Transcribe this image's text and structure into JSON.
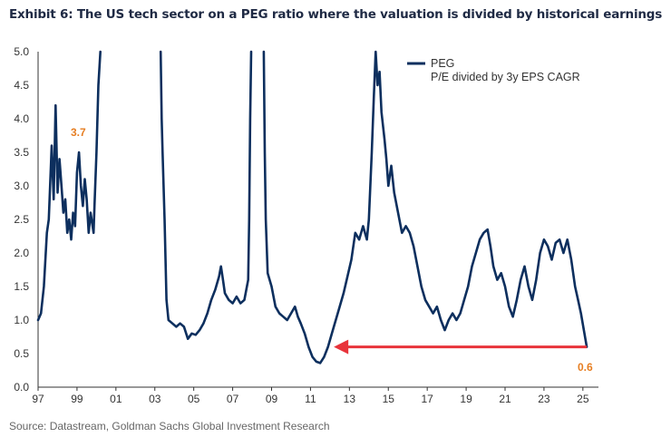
{
  "header": {
    "title": "Exhibit 6: The US tech sector on a PEG ratio where the valuation is divided by historical earnings"
  },
  "footer": {
    "source": "Source: Datastream, Goldman Sachs Global Investment Research"
  },
  "colors": {
    "line": "#0d2f5e",
    "arrow": "#e8333a",
    "annotation": "#e67e22",
    "axis": "#333333"
  },
  "legend": {
    "line1": "PEG",
    "line2": "P/E divided by 3y EPS CAGR",
    "placement": "top-right"
  },
  "annotations": {
    "peak_label": "3.7",
    "current_label": "0.6",
    "arrow": {
      "from_year": 2025.2,
      "to_year": 2012.2,
      "y": 0.6
    }
  },
  "chart_data": {
    "type": "line",
    "title": "",
    "xlabel": "",
    "ylabel": "",
    "xlim": [
      1997,
      2025.8
    ],
    "ylim": [
      0,
      5
    ],
    "x_ticks": [
      {
        "year": 1997,
        "label": "97"
      },
      {
        "year": 1999,
        "label": "99"
      },
      {
        "year": 2001,
        "label": "01"
      },
      {
        "year": 2003,
        "label": "03"
      },
      {
        "year": 2005,
        "label": "05"
      },
      {
        "year": 2007,
        "label": "07"
      },
      {
        "year": 2009,
        "label": "09"
      },
      {
        "year": 2011,
        "label": "11"
      },
      {
        "year": 2013,
        "label": "13"
      },
      {
        "year": 2015,
        "label": "15"
      },
      {
        "year": 2017,
        "label": "17"
      },
      {
        "year": 2019,
        "label": "19"
      },
      {
        "year": 2021,
        "label": "21"
      },
      {
        "year": 2023,
        "label": "23"
      },
      {
        "year": 2025,
        "label": "25"
      }
    ],
    "y_ticks": [
      {
        "value": 0,
        "label": "0.0"
      },
      {
        "value": 0.5,
        "label": "0.5"
      },
      {
        "value": 1,
        "label": "1.0"
      },
      {
        "value": 1.5,
        "label": "1.5"
      },
      {
        "value": 2,
        "label": "2.0"
      },
      {
        "value": 2.5,
        "label": "2.5"
      },
      {
        "value": 3,
        "label": "3.0"
      },
      {
        "value": 3.5,
        "label": "3.5"
      },
      {
        "value": 4,
        "label": "4.0"
      },
      {
        "value": 4.5,
        "label": "4.5"
      },
      {
        "value": 5,
        "label": "5.0"
      }
    ],
    "series": [
      {
        "name": "PEG",
        "segments": [
          [
            [
              1997.0,
              1.0
            ],
            [
              1997.15,
              1.1
            ],
            [
              1997.3,
              1.5
            ],
            [
              1997.45,
              2.3
            ],
            [
              1997.55,
              2.5
            ],
            [
              1997.7,
              3.6
            ],
            [
              1997.8,
              2.8
            ],
            [
              1997.9,
              4.2
            ],
            [
              1998.0,
              2.9
            ],
            [
              1998.1,
              3.4
            ],
            [
              1998.2,
              3.0
            ],
            [
              1998.3,
              2.6
            ],
            [
              1998.4,
              2.8
            ],
            [
              1998.5,
              2.3
            ],
            [
              1998.6,
              2.5
            ],
            [
              1998.7,
              2.2
            ],
            [
              1998.8,
              2.6
            ],
            [
              1998.9,
              2.4
            ],
            [
              1999.0,
              3.2
            ],
            [
              1999.1,
              3.5
            ],
            [
              1999.2,
              3.0
            ],
            [
              1999.3,
              2.7
            ],
            [
              1999.4,
              3.1
            ],
            [
              1999.5,
              2.8
            ],
            [
              1999.6,
              2.3
            ],
            [
              1999.7,
              2.6
            ],
            [
              1999.8,
              2.4
            ],
            [
              1999.85,
              2.3
            ],
            [
              1999.9,
              2.7
            ],
            [
              2000.0,
              3.5
            ],
            [
              2000.1,
              4.5
            ],
            [
              2000.2,
              5.0
            ]
          ],
          [
            [
              2003.3,
              5.0
            ],
            [
              2003.35,
              4.0
            ],
            [
              2003.4,
              3.5
            ],
            [
              2003.5,
              2.5
            ],
            [
              2003.6,
              1.3
            ],
            [
              2003.7,
              1.0
            ],
            [
              2003.9,
              0.95
            ],
            [
              2004.1,
              0.9
            ],
            [
              2004.3,
              0.95
            ],
            [
              2004.5,
              0.9
            ],
            [
              2004.7,
              0.72
            ],
            [
              2004.9,
              0.8
            ],
            [
              2005.1,
              0.78
            ],
            [
              2005.3,
              0.85
            ],
            [
              2005.5,
              0.95
            ],
            [
              2005.7,
              1.1
            ],
            [
              2005.9,
              1.3
            ],
            [
              2006.1,
              1.45
            ],
            [
              2006.3,
              1.65
            ],
            [
              2006.4,
              1.8
            ],
            [
              2006.5,
              1.6
            ],
            [
              2006.6,
              1.4
            ],
            [
              2006.8,
              1.3
            ],
            [
              2007.0,
              1.25
            ],
            [
              2007.2,
              1.35
            ],
            [
              2007.4,
              1.25
            ],
            [
              2007.6,
              1.3
            ],
            [
              2007.8,
              1.6
            ],
            [
              2007.85,
              2.5
            ],
            [
              2007.9,
              4.0
            ],
            [
              2007.95,
              5.0
            ]
          ],
          [
            [
              2008.6,
              5.0
            ],
            [
              2008.65,
              3.5
            ],
            [
              2008.7,
              2.5
            ],
            [
              2008.8,
              1.7
            ],
            [
              2009.0,
              1.5
            ],
            [
              2009.2,
              1.2
            ],
            [
              2009.4,
              1.1
            ],
            [
              2009.6,
              1.05
            ],
            [
              2009.8,
              1.0
            ],
            [
              2010.0,
              1.1
            ],
            [
              2010.2,
              1.2
            ],
            [
              2010.35,
              1.05
            ],
            [
              2010.5,
              0.95
            ],
            [
              2010.7,
              0.8
            ],
            [
              2010.9,
              0.6
            ],
            [
              2011.1,
              0.45
            ],
            [
              2011.3,
              0.38
            ],
            [
              2011.5,
              0.36
            ],
            [
              2011.7,
              0.45
            ],
            [
              2011.9,
              0.6
            ],
            [
              2012.1,
              0.8
            ],
            [
              2012.3,
              1.0
            ],
            [
              2012.5,
              1.2
            ],
            [
              2012.7,
              1.4
            ],
            [
              2012.9,
              1.65
            ],
            [
              2013.1,
              1.9
            ],
            [
              2013.3,
              2.3
            ],
            [
              2013.5,
              2.2
            ],
            [
              2013.7,
              2.4
            ],
            [
              2013.9,
              2.2
            ],
            [
              2014.0,
              2.5
            ],
            [
              2014.15,
              3.5
            ],
            [
              2014.25,
              4.3
            ],
            [
              2014.35,
              5.0
            ],
            [
              2014.45,
              4.5
            ],
            [
              2014.55,
              4.7
            ],
            [
              2014.65,
              4.1
            ],
            [
              2014.8,
              3.7
            ],
            [
              2014.9,
              3.4
            ],
            [
              2015.0,
              3.0
            ],
            [
              2015.15,
              3.3
            ],
            [
              2015.3,
              2.9
            ],
            [
              2015.5,
              2.6
            ],
            [
              2015.7,
              2.3
            ],
            [
              2015.9,
              2.4
            ],
            [
              2016.1,
              2.3
            ],
            [
              2016.3,
              2.1
            ],
            [
              2016.5,
              1.8
            ],
            [
              2016.7,
              1.5
            ],
            [
              2016.9,
              1.3
            ],
            [
              2017.1,
              1.2
            ],
            [
              2017.3,
              1.1
            ],
            [
              2017.5,
              1.2
            ],
            [
              2017.7,
              1.0
            ],
            [
              2017.9,
              0.85
            ],
            [
              2018.1,
              1.0
            ],
            [
              2018.3,
              1.1
            ],
            [
              2018.5,
              1.0
            ],
            [
              2018.7,
              1.1
            ],
            [
              2018.9,
              1.3
            ],
            [
              2019.1,
              1.5
            ],
            [
              2019.3,
              1.8
            ],
            [
              2019.5,
              2.0
            ],
            [
              2019.7,
              2.2
            ],
            [
              2019.9,
              2.3
            ],
            [
              2020.1,
              2.35
            ],
            [
              2020.25,
              2.1
            ],
            [
              2020.4,
              1.8
            ],
            [
              2020.6,
              1.6
            ],
            [
              2020.8,
              1.7
            ],
            [
              2021.0,
              1.5
            ],
            [
              2021.2,
              1.2
            ],
            [
              2021.4,
              1.05
            ],
            [
              2021.6,
              1.3
            ],
            [
              2021.8,
              1.6
            ],
            [
              2022.0,
              1.8
            ],
            [
              2022.2,
              1.5
            ],
            [
              2022.4,
              1.3
            ],
            [
              2022.6,
              1.6
            ],
            [
              2022.8,
              2.0
            ],
            [
              2023.0,
              2.2
            ],
            [
              2023.2,
              2.1
            ],
            [
              2023.4,
              1.9
            ],
            [
              2023.6,
              2.15
            ],
            [
              2023.8,
              2.2
            ],
            [
              2024.0,
              2.0
            ],
            [
              2024.2,
              2.2
            ],
            [
              2024.4,
              1.9
            ],
            [
              2024.6,
              1.5
            ],
            [
              2024.75,
              1.3
            ],
            [
              2024.9,
              1.1
            ],
            [
              2025.05,
              0.85
            ],
            [
              2025.2,
              0.6
            ]
          ]
        ]
      }
    ]
  }
}
